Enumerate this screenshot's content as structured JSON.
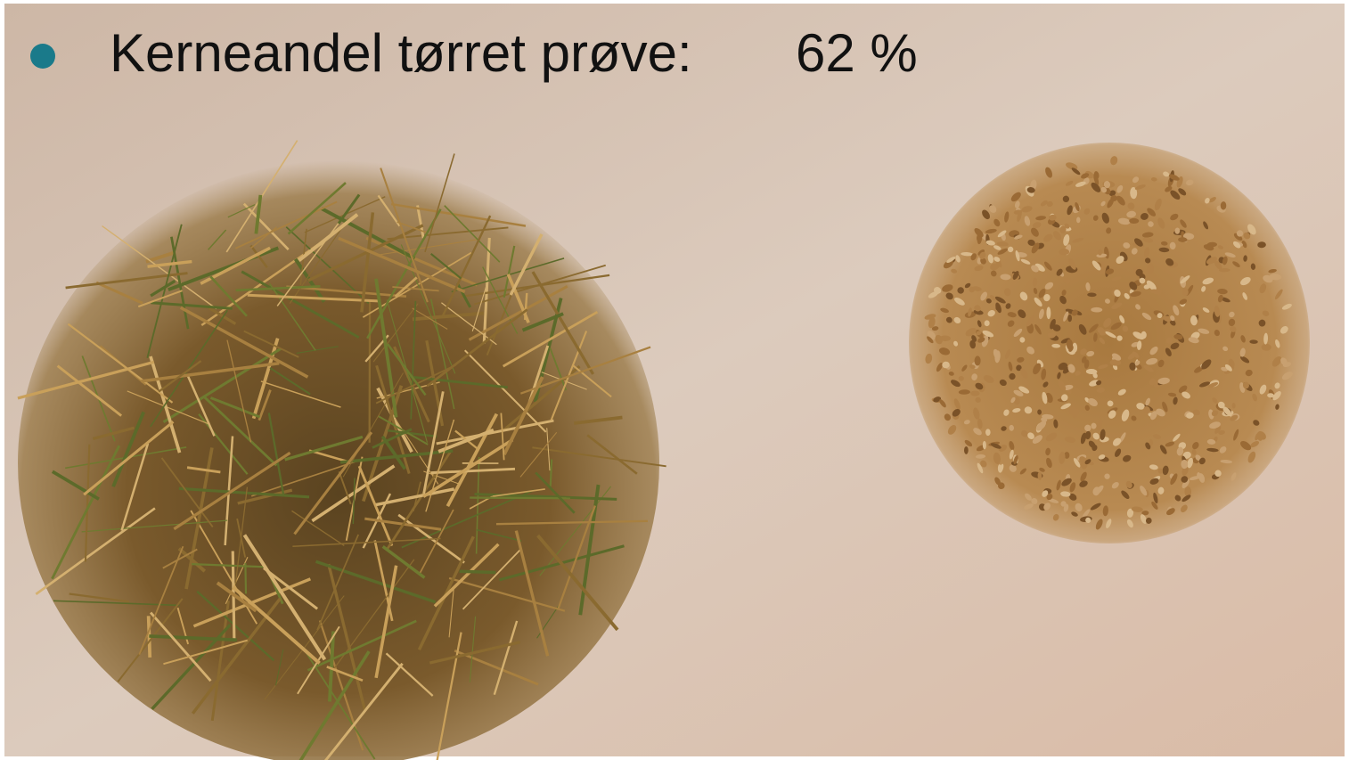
{
  "bullet": {
    "label": "Kerneandel tørret prøve:",
    "value": "62 %"
  }
}
